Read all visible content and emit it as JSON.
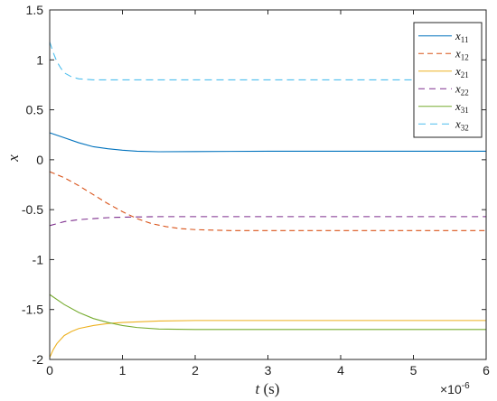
{
  "chart_data": {
    "type": "line",
    "xlabel": {
      "var": "t",
      "unit": "(s)"
    },
    "ylabel": "x",
    "x_multiplier": {
      "base": "×10",
      "exp": "-6"
    },
    "xlim": [
      0,
      6e-06
    ],
    "ylim": [
      -2,
      1.5
    ],
    "xticks": [
      0,
      1e-06,
      2e-06,
      3e-06,
      4e-06,
      5e-06,
      6e-06
    ],
    "xtick_labels": [
      "0",
      "1",
      "2",
      "3",
      "4",
      "5",
      "6"
    ],
    "yticks": [
      1.5,
      1,
      0.5,
      0,
      -0.5,
      -1,
      -1.5,
      -2
    ],
    "ytick_labels": [
      "1.5",
      "1",
      "0.5",
      "0",
      "-0.5",
      "-1",
      "-1.5",
      "-2"
    ],
    "grid": false,
    "legend_position": "top-right",
    "series": [
      {
        "name": "x11",
        "base": "x",
        "sub": "11",
        "color": "#0072BD",
        "dash": "solid",
        "x": [
          0,
          2e-07,
          4e-07,
          6e-07,
          8e-07,
          1e-06,
          1.2e-06,
          1.5e-06,
          2e-06,
          3e-06,
          4e-06,
          5e-06,
          6e-06
        ],
        "y": [
          0.27,
          0.22,
          0.17,
          0.13,
          0.11,
          0.095,
          0.085,
          0.08,
          0.082,
          0.085,
          0.085,
          0.085,
          0.085
        ]
      },
      {
        "name": "x12",
        "base": "x",
        "sub": "12",
        "color": "#D95319",
        "dash": "6,4",
        "x": [
          0,
          2e-07,
          4e-07,
          6e-07,
          8e-07,
          1e-06,
          1.2e-06,
          1.4e-06,
          1.6e-06,
          1.8e-06,
          2e-06,
          2.5e-06,
          3e-06,
          4e-06,
          5e-06,
          6e-06
        ],
        "y": [
          -0.12,
          -0.18,
          -0.26,
          -0.35,
          -0.44,
          -0.52,
          -0.59,
          -0.64,
          -0.67,
          -0.69,
          -0.7,
          -0.71,
          -0.71,
          -0.71,
          -0.71,
          -0.71
        ]
      },
      {
        "name": "x21",
        "base": "x",
        "sub": "21",
        "color": "#EDB120",
        "dash": "solid",
        "x": [
          0,
          5e-08,
          1e-07,
          2e-07,
          3e-07,
          4e-07,
          6e-07,
          8e-07,
          1e-06,
          1.5e-06,
          2e-06,
          3e-06,
          4e-06,
          5e-06,
          6e-06
        ],
        "y": [
          -1.98,
          -1.9,
          -1.84,
          -1.76,
          -1.72,
          -1.69,
          -1.66,
          -1.64,
          -1.63,
          -1.615,
          -1.61,
          -1.61,
          -1.61,
          -1.61,
          -1.61
        ]
      },
      {
        "name": "x22",
        "base": "x",
        "sub": "22",
        "color": "#7E2F8E",
        "dash": "7,5",
        "x": [
          0,
          2e-07,
          4e-07,
          6e-07,
          8e-07,
          1e-06,
          1.5e-06,
          2e-06,
          3e-06,
          4e-06,
          5e-06,
          6e-06
        ],
        "y": [
          -0.66,
          -0.62,
          -0.6,
          -0.59,
          -0.58,
          -0.575,
          -0.57,
          -0.57,
          -0.57,
          -0.57,
          -0.57,
          -0.57
        ]
      },
      {
        "name": "x31",
        "base": "x",
        "sub": "31",
        "color": "#77AC30",
        "dash": "solid",
        "x": [
          0,
          2e-07,
          4e-07,
          6e-07,
          8e-07,
          1e-06,
          1.2e-06,
          1.5e-06,
          2e-06,
          3e-06,
          4e-06,
          5e-06,
          6e-06
        ],
        "y": [
          -1.35,
          -1.45,
          -1.53,
          -1.59,
          -1.63,
          -1.66,
          -1.68,
          -1.695,
          -1.7,
          -1.7,
          -1.7,
          -1.7,
          -1.7
        ]
      },
      {
        "name": "x32",
        "base": "x",
        "sub": "32",
        "color": "#4DBEEE",
        "dash": "8,5",
        "x": [
          0,
          5e-08,
          1e-07,
          1.5e-07,
          2e-07,
          3e-07,
          4e-07,
          6e-07,
          8e-07,
          1e-06,
          2e-06,
          3e-06,
          4e-06,
          5e-06,
          6e-06
        ],
        "y": [
          1.18,
          1.07,
          0.98,
          0.92,
          0.87,
          0.83,
          0.81,
          0.8,
          0.8,
          0.8,
          0.8,
          0.8,
          0.8,
          0.8,
          0.8
        ]
      }
    ]
  }
}
